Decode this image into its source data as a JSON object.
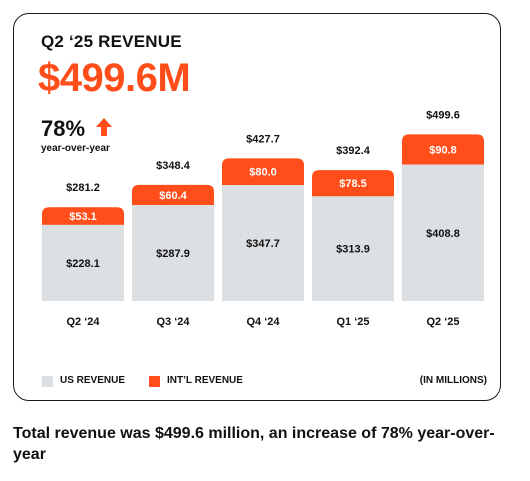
{
  "header": {
    "title": "Q2 ‘25 REVENUE",
    "headline_value": "$499.6M",
    "growth": "78%",
    "growth_label": "year-over-year",
    "arrow_icon": "up-arrow-icon"
  },
  "colors": {
    "us": "#dde0e3",
    "intl": "#ff4e1a",
    "accent": "#ff4e1a"
  },
  "legend": {
    "us_label": "US REVENUE",
    "intl_label": "INT’L REVENUE",
    "units": "(IN MILLIONS)"
  },
  "chart_data": {
    "type": "bar",
    "stacked": true,
    "categories": [
      "Q2 ‘24",
      "Q3 ‘24",
      "Q4 ‘24",
      "Q1 ‘25",
      "Q2 ‘25"
    ],
    "series": [
      {
        "name": "US REVENUE",
        "values": [
          228.1,
          287.9,
          347.7,
          313.9,
          408.8
        ]
      },
      {
        "name": "INT’L REVENUE",
        "values": [
          53.1,
          60.4,
          80.0,
          78.5,
          90.8
        ]
      }
    ],
    "totals": [
      281.2,
      348.4,
      427.7,
      392.4,
      499.6
    ],
    "us_labels": [
      "$228.1",
      "$287.9",
      "$347.7",
      "$313.9",
      "$408.8"
    ],
    "intl_labels": [
      "$53.1",
      "$60.4",
      "$80.0",
      "$78.5",
      "$90.8"
    ],
    "total_labels": [
      "$281.2",
      "$348.4",
      "$427.7",
      "$392.4",
      "$499.6"
    ],
    "ylim": [
      0,
      560
    ],
    "grid": false,
    "legend_position": "bottom-left"
  },
  "caption": "Total revenue was $499.6 million, an increase of 78% year-over-year"
}
